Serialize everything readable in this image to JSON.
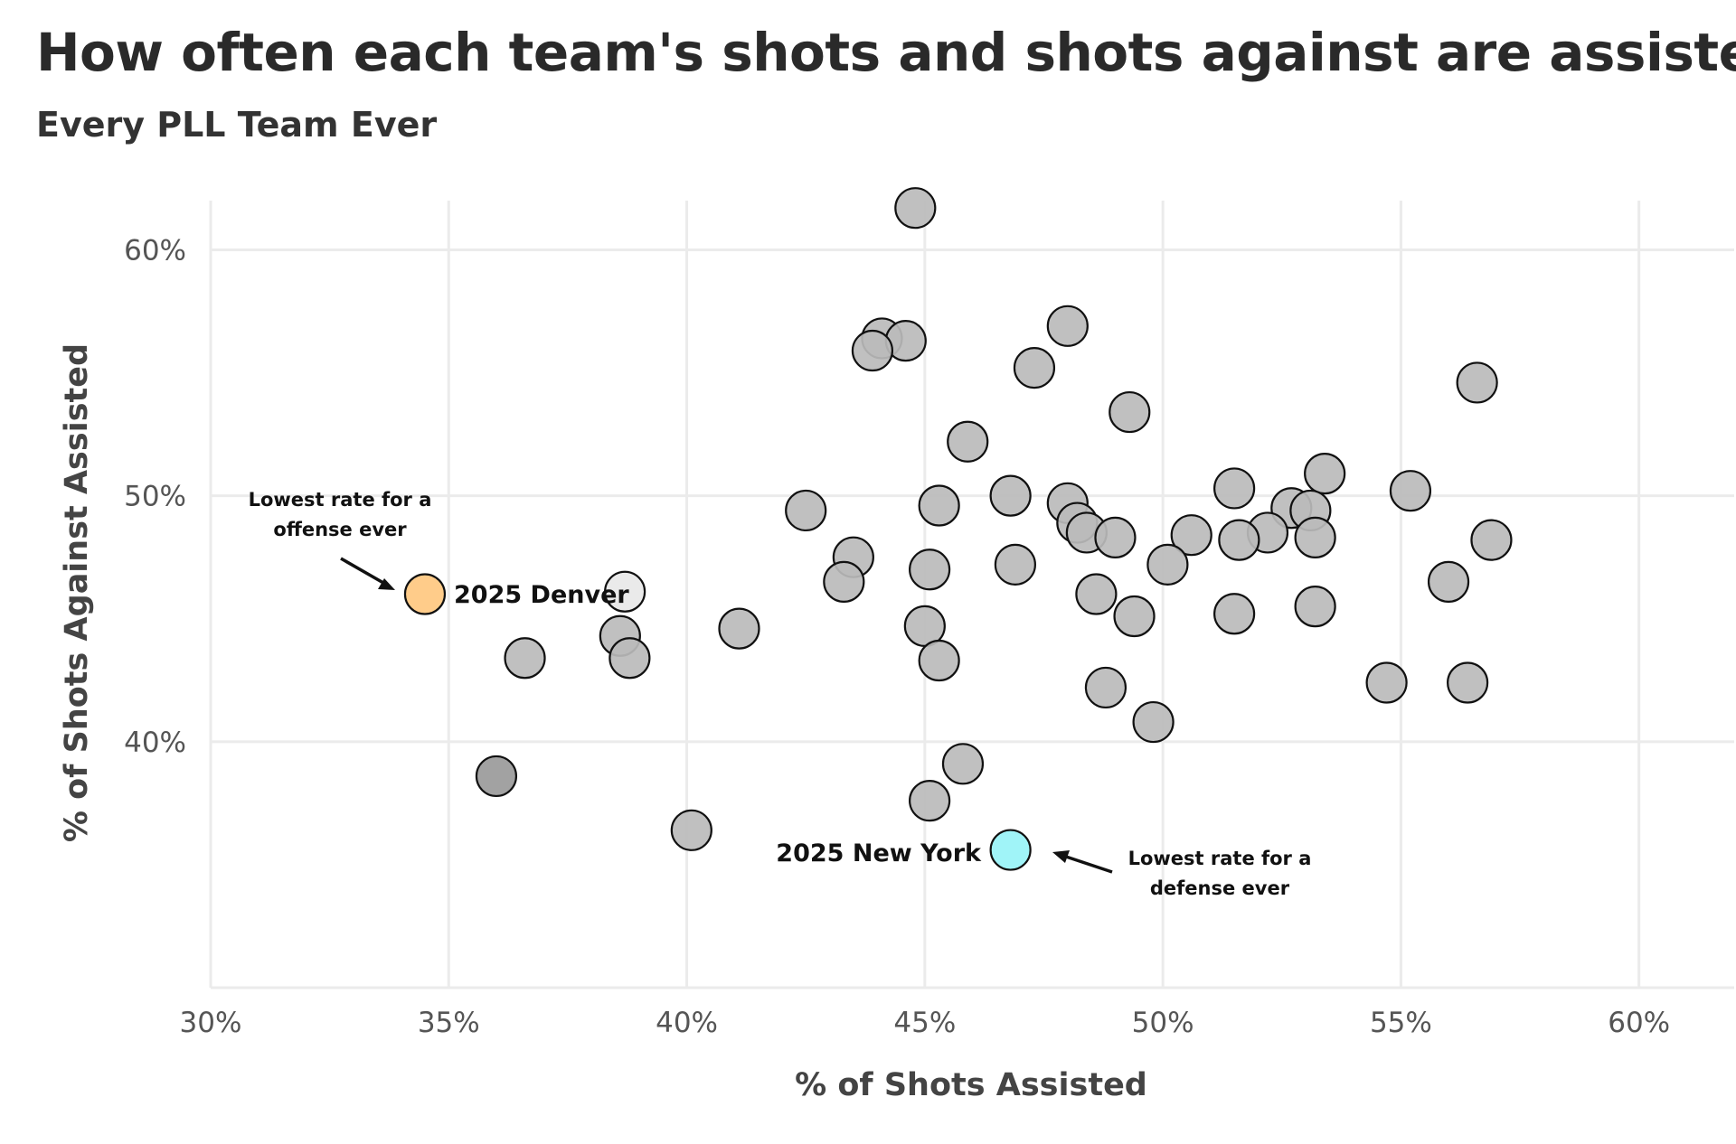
{
  "chart_data": {
    "type": "scatter",
    "title": "How often each team's shots and shots against are assisted",
    "subtitle": "Every PLL Team Ever",
    "xlabel": "% of Shots Assisted",
    "ylabel": "% of Shots Against Assisted",
    "xlim": [
      0.3,
      0.62
    ],
    "ylim": [
      0.3,
      0.62
    ],
    "x_ticks": [
      0.3,
      0.35,
      0.4,
      0.45,
      0.5,
      0.55,
      0.6
    ],
    "x_tick_labels": [
      "30%",
      "35%",
      "40%",
      "45%",
      "50%",
      "55%",
      "60%"
    ],
    "y_ticks": [
      0.4,
      0.5,
      0.6
    ],
    "y_tick_labels": [
      "40%",
      "50%",
      "60%"
    ],
    "grid": true,
    "colors": {
      "default_point": "#bbbbbb",
      "denver": "#ffcc8a",
      "new_york": "#a0f4f8",
      "light_point": "#e8e8e8",
      "dark_point": "#9a9a9a",
      "point_stroke": "#111111",
      "grid": "#ebebeb"
    },
    "points": [
      {
        "x": 0.448,
        "y": 0.617
      },
      {
        "x": 0.48,
        "y": 0.569
      },
      {
        "x": 0.441,
        "y": 0.564
      },
      {
        "x": 0.446,
        "y": 0.563
      },
      {
        "x": 0.439,
        "y": 0.559
      },
      {
        "x": 0.473,
        "y": 0.552
      },
      {
        "x": 0.566,
        "y": 0.546
      },
      {
        "x": 0.493,
        "y": 0.534
      },
      {
        "x": 0.459,
        "y": 0.522
      },
      {
        "x": 0.534,
        "y": 0.509
      },
      {
        "x": 0.515,
        "y": 0.503
      },
      {
        "x": 0.552,
        "y": 0.502
      },
      {
        "x": 0.468,
        "y": 0.5
      },
      {
        "x": 0.48,
        "y": 0.497
      },
      {
        "x": 0.453,
        "y": 0.496
      },
      {
        "x": 0.425,
        "y": 0.494
      },
      {
        "x": 0.527,
        "y": 0.495
      },
      {
        "x": 0.531,
        "y": 0.494
      },
      {
        "x": 0.482,
        "y": 0.489
      },
      {
        "x": 0.484,
        "y": 0.485
      },
      {
        "x": 0.506,
        "y": 0.484
      },
      {
        "x": 0.49,
        "y": 0.483
      },
      {
        "x": 0.522,
        "y": 0.485
      },
      {
        "x": 0.532,
        "y": 0.483
      },
      {
        "x": 0.569,
        "y": 0.482
      },
      {
        "x": 0.516,
        "y": 0.482
      },
      {
        "x": 0.435,
        "y": 0.475
      },
      {
        "x": 0.469,
        "y": 0.472
      },
      {
        "x": 0.501,
        "y": 0.472
      },
      {
        "x": 0.451,
        "y": 0.47
      },
      {
        "x": 0.433,
        "y": 0.465
      },
      {
        "x": 0.56,
        "y": 0.465
      },
      {
        "x": 0.387,
        "y": 0.461,
        "style": "light"
      },
      {
        "x": 0.345,
        "y": 0.46,
        "label": "2025 Denver",
        "highlight": "denver"
      },
      {
        "x": 0.486,
        "y": 0.46
      },
      {
        "x": 0.532,
        "y": 0.455
      },
      {
        "x": 0.515,
        "y": 0.452
      },
      {
        "x": 0.494,
        "y": 0.451
      },
      {
        "x": 0.45,
        "y": 0.447
      },
      {
        "x": 0.411,
        "y": 0.446
      },
      {
        "x": 0.386,
        "y": 0.443
      },
      {
        "x": 0.366,
        "y": 0.434
      },
      {
        "x": 0.388,
        "y": 0.434
      },
      {
        "x": 0.453,
        "y": 0.433
      },
      {
        "x": 0.547,
        "y": 0.424
      },
      {
        "x": 0.564,
        "y": 0.424
      },
      {
        "x": 0.488,
        "y": 0.422
      },
      {
        "x": 0.498,
        "y": 0.408
      },
      {
        "x": 0.458,
        "y": 0.391
      },
      {
        "x": 0.36,
        "y": 0.386,
        "style": "dark"
      },
      {
        "x": 0.451,
        "y": 0.376
      },
      {
        "x": 0.401,
        "y": 0.364
      },
      {
        "x": 0.468,
        "y": 0.356,
        "label": "2025 New York",
        "highlight": "new_york"
      }
    ],
    "annotations": [
      {
        "lines": [
          "Lowest rate for a",
          "offense ever"
        ],
        "target": "2025 Denver"
      },
      {
        "lines": [
          "Lowest rate for a",
          "defense ever"
        ],
        "target": "2025 New York"
      }
    ]
  }
}
